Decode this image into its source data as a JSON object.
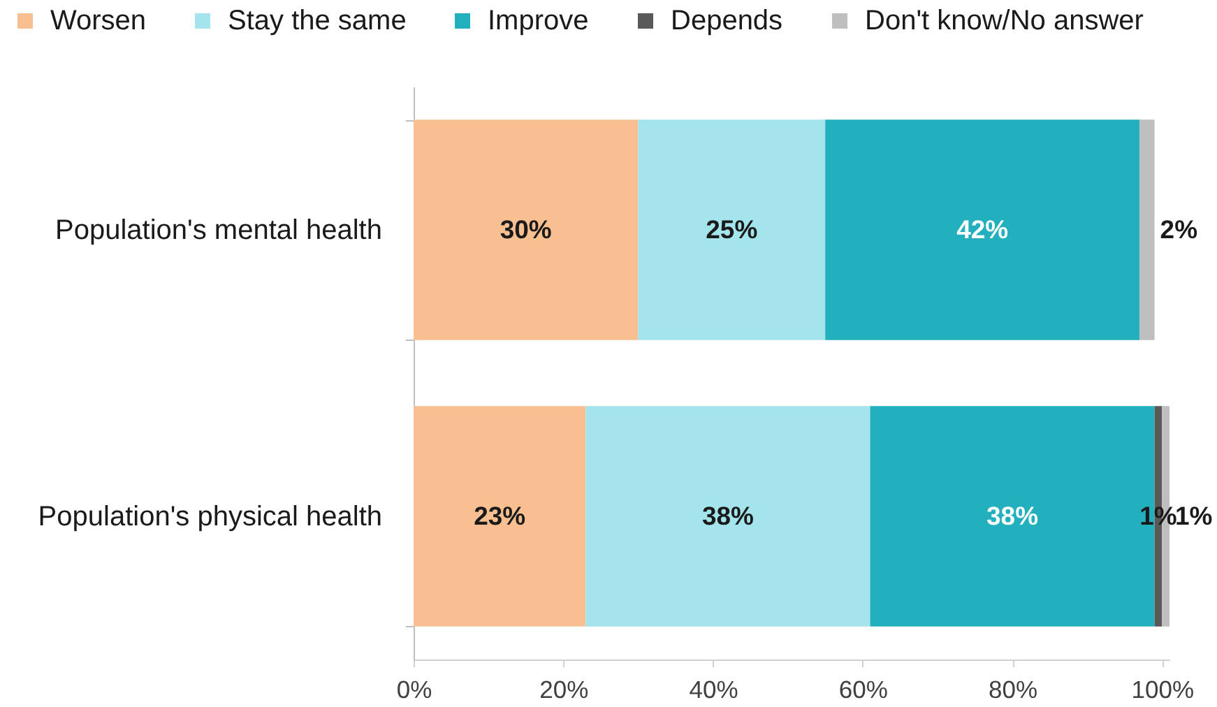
{
  "chart_data": {
    "type": "bar",
    "orientation": "horizontal",
    "stacked": true,
    "categories": [
      "Population's mental health",
      "Population's physical health"
    ],
    "series": [
      {
        "name": "Worsen",
        "color": "#f8bf91",
        "values": [
          30,
          23
        ],
        "value_labels": [
          "30%",
          "23%"
        ]
      },
      {
        "name": "Stay the same",
        "color": "#a4e4ec",
        "values": [
          25,
          38
        ],
        "value_labels": [
          "25%",
          "38%"
        ]
      },
      {
        "name": "Improve",
        "color": "#22b0be",
        "values": [
          42,
          38
        ],
        "value_labels": [
          "42%",
          "38%"
        ]
      },
      {
        "name": "Depends",
        "color": "#595959",
        "values": [
          null,
          1
        ],
        "value_labels": [
          null,
          "1%"
        ]
      },
      {
        "name": "Don't know/No answer",
        "color": "#bfbfbf",
        "values": [
          2,
          1
        ],
        "value_labels": [
          "2%",
          "1%"
        ]
      }
    ],
    "xlim": [
      0,
      101
    ],
    "xticks": [
      {
        "value": 0,
        "label": "0%"
      },
      {
        "value": 20,
        "label": "20%"
      },
      {
        "value": 40,
        "label": "40%"
      },
      {
        "value": 60,
        "label": "60%"
      },
      {
        "value": 80,
        "label": "80%"
      },
      {
        "value": 100,
        "label": "100%"
      }
    ],
    "grid": false,
    "legend": "top"
  }
}
